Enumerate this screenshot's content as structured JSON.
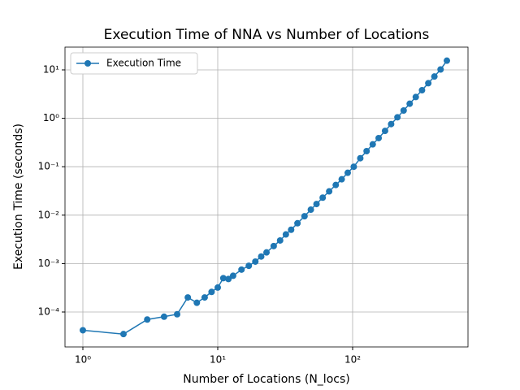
{
  "chart_data": {
    "type": "line",
    "title": "Execution Time of NNA vs Number of Locations",
    "x_label": "Number of Locations (N_locs)",
    "y_label": "Execution Time (seconds)",
    "log_x": true,
    "log_y": true,
    "grid": true,
    "legend": "upper left",
    "x": [
      1,
      2,
      3,
      4,
      5,
      6,
      7,
      8,
      9,
      10,
      11,
      12,
      13,
      15,
      17,
      19,
      21,
      23,
      26,
      29,
      32,
      35,
      39,
      44,
      49,
      54,
      60,
      67,
      75,
      83,
      92,
      102,
      114,
      127,
      141,
      156,
      174,
      193,
      215,
      239,
      265,
      294,
      327,
      364,
      404,
      449,
      500
    ],
    "series": [
      {
        "name": "Execution Time",
        "color": "#1f77b4",
        "values": [
          4.2e-05,
          3.5e-05,
          7e-05,
          8e-05,
          9e-05,
          0.0002,
          0.000155,
          0.0002,
          0.00026,
          0.00032,
          0.0005,
          0.00048,
          0.00056,
          0.00075,
          0.0009,
          0.0011,
          0.0014,
          0.0017,
          0.0023,
          0.003,
          0.004,
          0.005,
          0.0068,
          0.0095,
          0.013,
          0.017,
          0.023,
          0.031,
          0.042,
          0.055,
          0.075,
          0.1,
          0.15,
          0.21,
          0.29,
          0.39,
          0.55,
          0.76,
          1.05,
          1.45,
          2.0,
          2.75,
          3.8,
          5.3,
          7.3,
          10.2,
          15.5
        ]
      }
    ],
    "xlim": [
      0.737,
      717
    ],
    "ylim": [
      1.9e-05,
      29.5
    ],
    "xticks": [
      {
        "value": 1,
        "label": "10⁰"
      },
      {
        "value": 10,
        "label": "10¹"
      },
      {
        "value": 100,
        "label": "10²"
      }
    ],
    "yticks": [
      {
        "value": 0.0001,
        "label": "10⁻⁴"
      },
      {
        "value": 0.001,
        "label": "10⁻³"
      },
      {
        "value": 0.01,
        "label": "10⁻²"
      },
      {
        "value": 0.1,
        "label": "10⁻¹"
      },
      {
        "value": 1,
        "label": "10⁰"
      },
      {
        "value": 10,
        "label": "10¹"
      }
    ]
  }
}
